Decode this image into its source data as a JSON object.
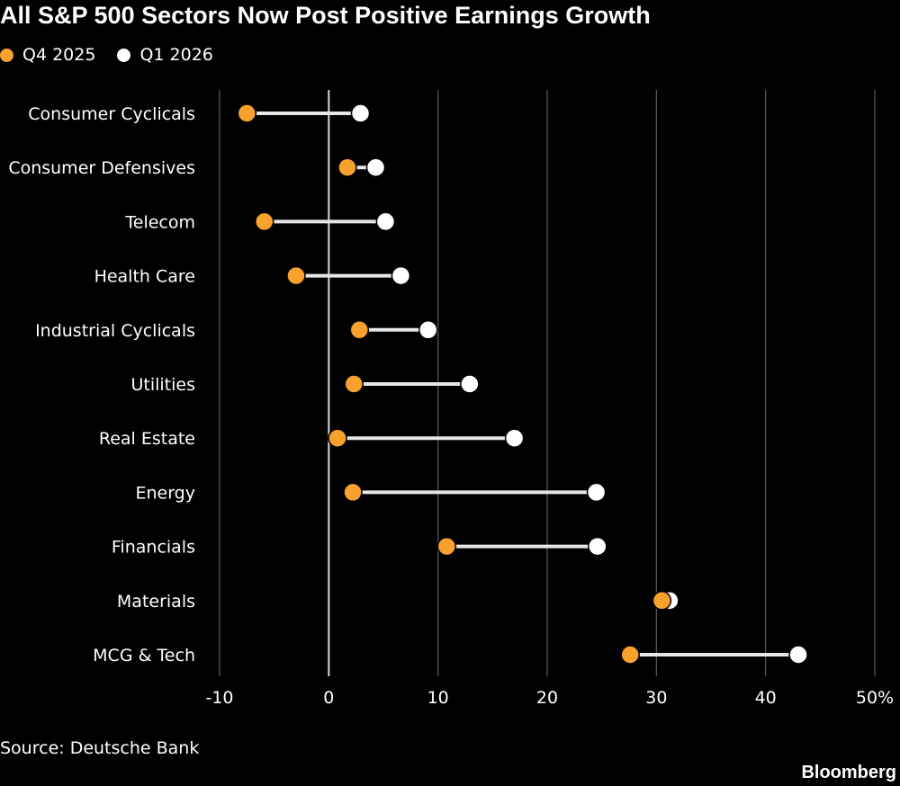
{
  "title": "All S&P 500 Sectors Now Post Positive Earnings Growth",
  "source": "Source: Deutsche Bank",
  "brand": "Bloomberg",
  "colors": {
    "q4": "#f9a12e",
    "q1": "#ffffff",
    "background": "#000000",
    "grid": "#5a5a5a",
    "zero": "#d9d9d9",
    "connector": "#e6e6e6"
  },
  "chart_data": {
    "type": "dot-plot",
    "title": "All S&P 500 Sectors Now Post Positive Earnings Growth",
    "categories": [
      "Consumer Cyclicals",
      "Consumer Defensives",
      "Telecom",
      "Health Care",
      "Industrial Cyclicals",
      "Utilities",
      "Real Estate",
      "Energy",
      "Financials",
      "Materials",
      "MCG & Tech"
    ],
    "series": [
      {
        "name": "Q4 2025",
        "values": [
          -7.5,
          1.7,
          -5.9,
          -3.0,
          2.8,
          2.3,
          0.8,
          2.2,
          10.8,
          30.5,
          27.6
        ]
      },
      {
        "name": "Q1 2026",
        "values": [
          2.9,
          4.3,
          5.2,
          6.6,
          9.1,
          12.9,
          17.0,
          24.5,
          24.6,
          31.2,
          43.0
        ]
      }
    ],
    "xlim": [
      -10,
      50
    ],
    "xticks": [
      -10,
      0,
      10,
      20,
      30,
      40,
      50
    ],
    "xtick_labels": [
      "-10",
      "0",
      "10",
      "20",
      "30",
      "40",
      "50%"
    ],
    "grid": true,
    "legend_position": "top-left"
  }
}
